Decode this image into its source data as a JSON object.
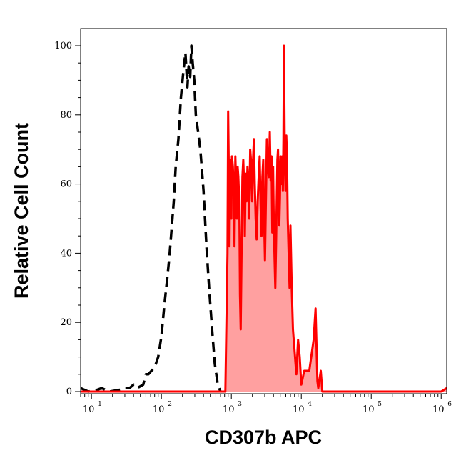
{
  "chart_data": {
    "type": "area",
    "title": "",
    "xlabel": "CD307b APC",
    "ylabel": "Relative Cell Count",
    "xscale": "log",
    "xlim": [
      7,
      1200000
    ],
    "ylim": [
      0,
      105
    ],
    "x_ticks": [
      {
        "base": "10",
        "exp": "1",
        "value": 10
      },
      {
        "base": "10",
        "exp": "2",
        "value": 100
      },
      {
        "base": "10",
        "exp": "3",
        "value": 1000
      },
      {
        "base": "10",
        "exp": "4",
        "value": 10000
      },
      {
        "base": "10",
        "exp": "5",
        "value": 100000
      },
      {
        "base": "10",
        "exp": "6",
        "value": 1000000
      }
    ],
    "y_ticks": [
      "0",
      "20",
      "40",
      "60",
      "80",
      "100"
    ],
    "grid": false,
    "legend": "none",
    "series": [
      {
        "style": "dashed-line",
        "color": "#000000",
        "points": [
          [
            7,
            1
          ],
          [
            9,
            0
          ],
          [
            12,
            0.5
          ],
          [
            14,
            1
          ],
          [
            18,
            0
          ],
          [
            25,
            0.5
          ],
          [
            30,
            1
          ],
          [
            35,
            1
          ],
          [
            40,
            2
          ],
          [
            45,
            1
          ],
          [
            55,
            2
          ],
          [
            60,
            5
          ],
          [
            65,
            5
          ],
          [
            72,
            6
          ],
          [
            80,
            7
          ],
          [
            90,
            10
          ],
          [
            100,
            16
          ],
          [
            110,
            25
          ],
          [
            120,
            32
          ],
          [
            130,
            39
          ],
          [
            150,
            55
          ],
          [
            160,
            65
          ],
          [
            175,
            73
          ],
          [
            190,
            85
          ],
          [
            205,
            92
          ],
          [
            220,
            98
          ],
          [
            235,
            88
          ],
          [
            245,
            94
          ],
          [
            258,
            91
          ],
          [
            268,
            100
          ],
          [
            280,
            95
          ],
          [
            295,
            90
          ],
          [
            310,
            80
          ],
          [
            330,
            76
          ],
          [
            360,
            70
          ],
          [
            400,
            58
          ],
          [
            440,
            42
          ],
          [
            480,
            30
          ],
          [
            530,
            18
          ],
          [
            580,
            8
          ],
          [
            640,
            2
          ],
          [
            700,
            0
          ]
        ]
      },
      {
        "style": "filled-area",
        "color": "#ff0000",
        "fill": "#ffa0a0",
        "points": [
          [
            7,
            0
          ],
          [
            820,
            0
          ],
          [
            850,
            20
          ],
          [
            880,
            40
          ],
          [
            900,
            81
          ],
          [
            920,
            63
          ],
          [
            940,
            42
          ],
          [
            960,
            67
          ],
          [
            980,
            61
          ],
          [
            1000,
            50
          ],
          [
            1020,
            68
          ],
          [
            1050,
            65
          ],
          [
            1080,
            58
          ],
          [
            1110,
            42
          ],
          [
            1140,
            68
          ],
          [
            1170,
            60
          ],
          [
            1200,
            50
          ],
          [
            1230,
            65
          ],
          [
            1260,
            62
          ],
          [
            1300,
            54
          ],
          [
            1330,
            28
          ],
          [
            1360,
            18
          ],
          [
            1400,
            40
          ],
          [
            1440,
            62
          ],
          [
            1480,
            67
          ],
          [
            1520,
            60
          ],
          [
            1560,
            45
          ],
          [
            1600,
            63
          ],
          [
            1650,
            55
          ],
          [
            1700,
            65
          ],
          [
            1750,
            60
          ],
          [
            1800,
            50
          ],
          [
            1860,
            70
          ],
          [
            1920,
            66
          ],
          [
            1980,
            55
          ],
          [
            2040,
            67
          ],
          [
            2100,
            73
          ],
          [
            2160,
            60
          ],
          [
            2230,
            50
          ],
          [
            2300,
            44
          ],
          [
            2380,
            55
          ],
          [
            2460,
            62
          ],
          [
            2540,
            68
          ],
          [
            2620,
            54
          ],
          [
            2700,
            45
          ],
          [
            2780,
            62
          ],
          [
            2860,
            67
          ],
          [
            2940,
            50
          ],
          [
            3020,
            38
          ],
          [
            3120,
            55
          ],
          [
            3220,
            73
          ],
          [
            3320,
            67
          ],
          [
            3420,
            62
          ],
          [
            3550,
            75
          ],
          [
            3650,
            61
          ],
          [
            3750,
            68
          ],
          [
            3850,
            46
          ],
          [
            3950,
            65
          ],
          [
            4050,
            48
          ],
          [
            4150,
            38
          ],
          [
            4250,
            30
          ],
          [
            4350,
            42
          ],
          [
            4450,
            55
          ],
          [
            4550,
            67
          ],
          [
            4650,
            70
          ],
          [
            4750,
            62
          ],
          [
            4850,
            48
          ],
          [
            4950,
            56
          ],
          [
            5050,
            68
          ],
          [
            5150,
            62
          ],
          [
            5250,
            60
          ],
          [
            5350,
            68
          ],
          [
            5450,
            58
          ],
          [
            5550,
            73
          ],
          [
            5650,
            100
          ],
          [
            5800,
            70
          ],
          [
            5950,
            58
          ],
          [
            6100,
            74
          ],
          [
            6250,
            67
          ],
          [
            6400,
            50
          ],
          [
            6600,
            40
          ],
          [
            6800,
            30
          ],
          [
            7000,
            48
          ],
          [
            7300,
            30
          ],
          [
            7600,
            18
          ],
          [
            8000,
            12
          ],
          [
            8500,
            5
          ],
          [
            9000,
            15
          ],
          [
            9500,
            10
          ],
          [
            10000,
            2
          ],
          [
            11000,
            6
          ],
          [
            13000,
            6
          ],
          [
            15000,
            15
          ],
          [
            16000,
            24
          ],
          [
            17000,
            3
          ],
          [
            17500,
            1
          ],
          [
            19000,
            6
          ],
          [
            20000,
            0
          ],
          [
            1000000,
            0
          ],
          [
            1200000,
            1
          ]
        ]
      }
    ]
  }
}
